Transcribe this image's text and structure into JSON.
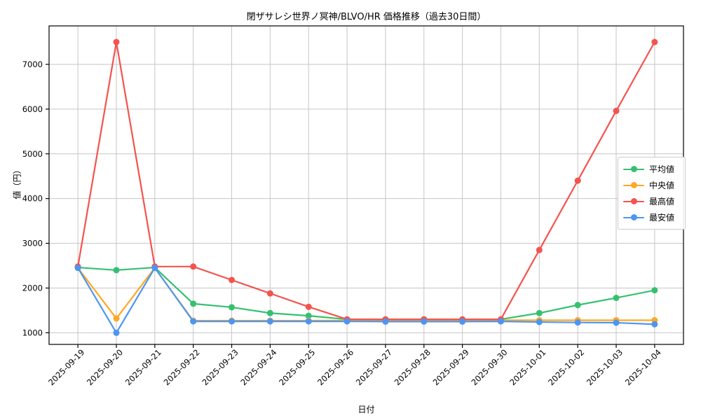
{
  "chart_data": {
    "type": "line",
    "title": "閉ザサレシ世界ノ冥神/BLVO/HR 価格推移（過去30日間）",
    "xlabel": "日付",
    "ylabel": "値（円）",
    "categories": [
      "2025-09-19",
      "2025-09-20",
      "2025-09-21",
      "2025-09-22",
      "2025-09-23",
      "2025-09-24",
      "2025-09-25",
      "2025-09-26",
      "2025-09-27",
      "2025-09-28",
      "2025-09-29",
      "2025-09-30",
      "2025-10-01",
      "2025-10-02",
      "2025-10-03",
      "2025-10-04"
    ],
    "series": [
      {
        "key": "average",
        "label": "平均値",
        "color": "#35c070",
        "values": [
          2460,
          2400,
          2460,
          1650,
          1570,
          1440,
          1380,
          1300,
          1300,
          1300,
          1300,
          1300,
          1440,
          1620,
          1780,
          1950
        ]
      },
      {
        "key": "median",
        "label": "中央値",
        "color": "#ffa726",
        "values": [
          2450,
          1320,
          2450,
          1270,
          1270,
          1270,
          1270,
          1275,
          1275,
          1275,
          1275,
          1280,
          1280,
          1280,
          1280,
          1280
        ]
      },
      {
        "key": "max",
        "label": "最高値",
        "color": "#f4534e",
        "values": [
          2480,
          7500,
          2480,
          2480,
          2180,
          1880,
          1580,
          1300,
          1300,
          1300,
          1300,
          1300,
          2850,
          4400,
          5960,
          7500
        ]
      },
      {
        "key": "min",
        "label": "最安値",
        "color": "#4d96f0",
        "values": [
          2450,
          1000,
          2450,
          1255,
          1255,
          1255,
          1255,
          1255,
          1250,
          1250,
          1250,
          1255,
          1240,
          1230,
          1225,
          1190
        ]
      }
    ],
    "y_ticks": [
      1000,
      2000,
      3000,
      4000,
      5000,
      6000,
      7000
    ],
    "ylim": [
      740,
      7860
    ],
    "grid": true,
    "grid_color": "#c6c6c6",
    "axis_color": "#000000",
    "legend_position": "center right",
    "x_tick_rotation_deg": 45,
    "line_width": 2.2,
    "marker_radius": 4.5
  }
}
